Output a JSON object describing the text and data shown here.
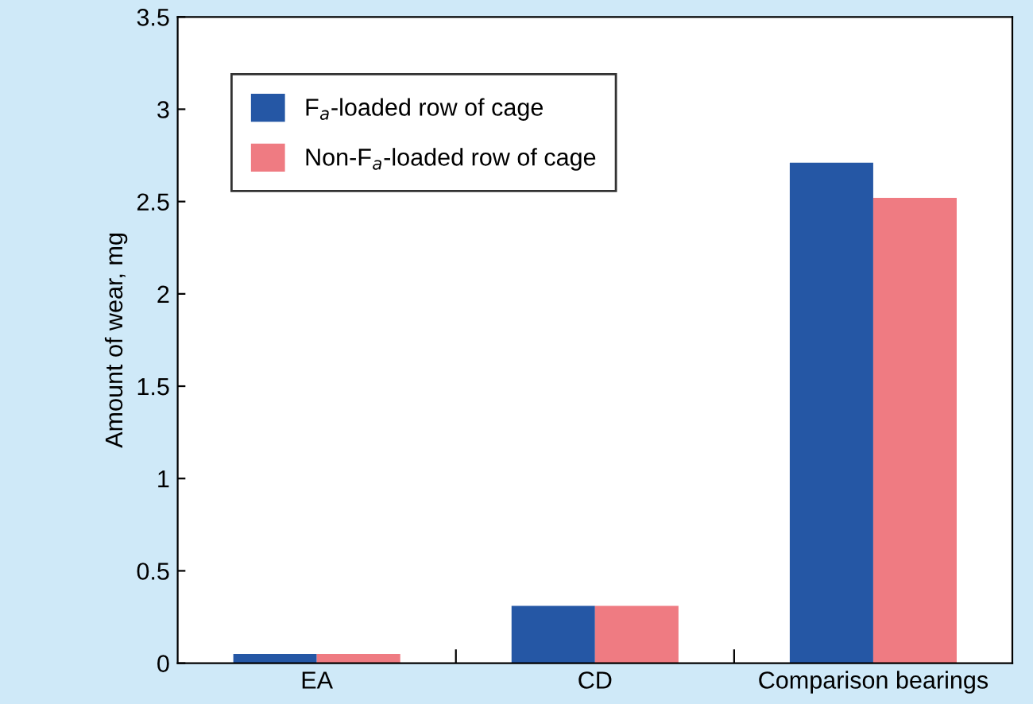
{
  "chart_data": {
    "type": "bar",
    "ylabel": "Amount of wear, mg",
    "categories": [
      "EA",
      "CD",
      "Comparison bearings"
    ],
    "series": [
      {
        "name": "F$_{a}$-loaded row of cage",
        "color": "#2557a5",
        "values": [
          0.05,
          0.31,
          2.71
        ]
      },
      {
        "name": "Non-F$_{a}$-loaded row of cage",
        "color": "#ef7b82",
        "values": [
          0.05,
          0.31,
          2.52
        ]
      }
    ],
    "ylim": [
      0,
      3.5
    ],
    "yticks": [
      0,
      0.5,
      1,
      1.5,
      2,
      2.5,
      3,
      3.5
    ],
    "grid": false,
    "legend": "top left"
  }
}
